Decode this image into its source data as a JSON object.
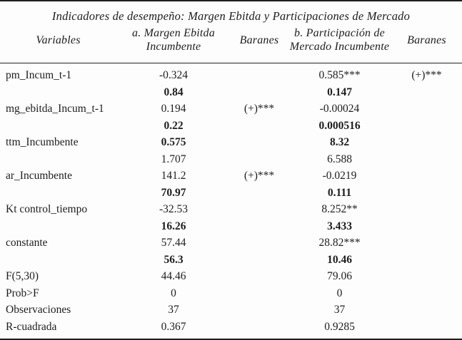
{
  "title": "Indicadores de desempeño: Margen Ebitda y Participaciones de Mercado",
  "colors": {
    "ink": "#1d1d1d",
    "paper": "#fdfdfd",
    "rule": "#1f1f1f"
  },
  "table": {
    "columns": [
      {
        "label": "Variables"
      },
      {
        "label": "a. Margen Ebitda\nIncumbente"
      },
      {
        "label": "Baranes"
      },
      {
        "label": "b. Participación de\nMercado Incumbente"
      },
      {
        "label": "Baranes"
      }
    ],
    "rows": [
      {
        "cells": [
          "pm_Incum_t-1",
          "-0.324",
          "",
          "0.585***",
          "(+)***"
        ],
        "bold": [
          false,
          false,
          false,
          false,
          false
        ]
      },
      {
        "cells": [
          "",
          "0.84",
          "",
          "0.147",
          ""
        ],
        "bold": [
          false,
          true,
          false,
          true,
          false
        ]
      },
      {
        "cells": [
          "mg_ebitda_Incum_t-1",
          "0.194",
          "(+)***",
          "-0.00024",
          ""
        ],
        "bold": [
          false,
          false,
          false,
          false,
          false
        ]
      },
      {
        "cells": [
          "",
          "0.22",
          "",
          "0.000516",
          ""
        ],
        "bold": [
          false,
          true,
          false,
          true,
          false
        ]
      },
      {
        "cells": [
          "ttm_Incumbente",
          "0.575",
          "",
          "8.32",
          ""
        ],
        "bold": [
          false,
          true,
          false,
          true,
          false
        ]
      },
      {
        "cells": [
          "",
          "1.707",
          "",
          "6.588",
          ""
        ],
        "bold": [
          false,
          false,
          false,
          false,
          false
        ]
      },
      {
        "cells": [
          "ar_Incumbente",
          "141.2",
          "(+)***",
          "-0.0219",
          ""
        ],
        "bold": [
          false,
          false,
          false,
          false,
          false
        ]
      },
      {
        "cells": [
          "",
          "70.97",
          "",
          "0.111",
          ""
        ],
        "bold": [
          false,
          true,
          false,
          true,
          false
        ]
      },
      {
        "cells": [
          "Kt control_tiempo",
          "-32.53",
          "",
          "8.252**",
          ""
        ],
        "bold": [
          false,
          false,
          false,
          false,
          false
        ]
      },
      {
        "cells": [
          "",
          "16.26",
          "",
          "3.433",
          ""
        ],
        "bold": [
          false,
          true,
          false,
          true,
          false
        ]
      },
      {
        "cells": [
          "constante",
          "57.44",
          "",
          "28.82***",
          ""
        ],
        "bold": [
          false,
          false,
          false,
          false,
          false
        ]
      },
      {
        "cells": [
          "",
          "56.3",
          "",
          "10.46",
          ""
        ],
        "bold": [
          false,
          true,
          false,
          true,
          false
        ]
      },
      {
        "cells": [
          "F(5,30)",
          "44.46",
          "",
          "79.06",
          ""
        ],
        "bold": [
          false,
          false,
          false,
          false,
          false
        ]
      },
      {
        "cells": [
          "Prob>F",
          "0",
          "",
          "0",
          ""
        ],
        "bold": [
          false,
          false,
          false,
          false,
          false
        ]
      },
      {
        "cells": [
          "Observaciones",
          "37",
          "",
          "37",
          ""
        ],
        "bold": [
          false,
          false,
          false,
          false,
          false
        ]
      },
      {
        "cells": [
          "R-cuadrada",
          "0.367",
          "",
          "0.9285",
          ""
        ],
        "bold": [
          false,
          false,
          false,
          false,
          false
        ]
      }
    ]
  }
}
